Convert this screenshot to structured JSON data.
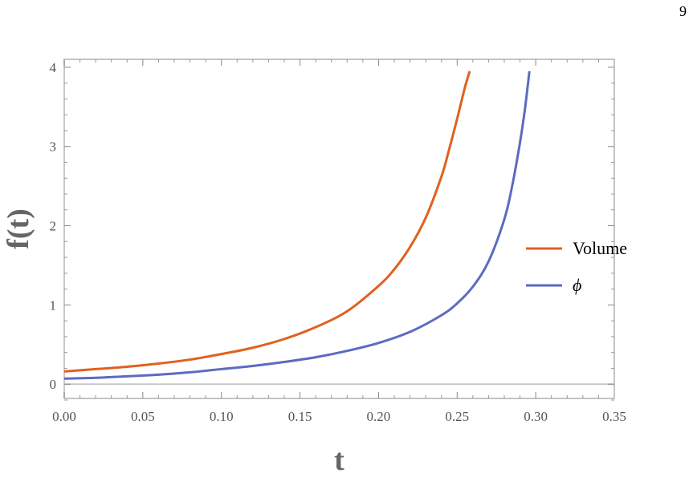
{
  "page_number": "9",
  "chart_data": {
    "type": "line",
    "title": "",
    "xlabel": "t",
    "ylabel": "f(t)",
    "xlim": [
      0.0,
      0.35
    ],
    "ylim": [
      -0.18,
      4.1
    ],
    "x_ticks": [
      "0.00",
      "0.05",
      "0.10",
      "0.15",
      "0.20",
      "0.25",
      "0.30",
      "0.35"
    ],
    "y_ticks": [
      "0",
      "1",
      "2",
      "3",
      "4"
    ],
    "legend_position": "right",
    "grid": false,
    "series": [
      {
        "name": "Volume",
        "color": "#E0611E",
        "x": [
          0.0,
          0.02,
          0.04,
          0.06,
          0.08,
          0.1,
          0.12,
          0.14,
          0.16,
          0.18,
          0.2,
          0.21,
          0.22,
          0.23,
          0.24,
          0.245,
          0.25,
          0.255,
          0.258
        ],
        "y": [
          0.16,
          0.19,
          0.22,
          0.26,
          0.31,
          0.38,
          0.46,
          0.57,
          0.72,
          0.92,
          1.24,
          1.45,
          1.73,
          2.1,
          2.62,
          2.97,
          3.35,
          3.75,
          3.95
        ]
      },
      {
        "name": "ϕ",
        "color": "#5C6BC0",
        "x": [
          0.0,
          0.02,
          0.04,
          0.06,
          0.08,
          0.1,
          0.12,
          0.14,
          0.16,
          0.18,
          0.2,
          0.22,
          0.24,
          0.25,
          0.26,
          0.27,
          0.28,
          0.285,
          0.29,
          0.293,
          0.296
        ],
        "y": [
          0.07,
          0.08,
          0.1,
          0.12,
          0.15,
          0.19,
          0.23,
          0.28,
          0.34,
          0.42,
          0.52,
          0.66,
          0.87,
          1.02,
          1.23,
          1.55,
          2.08,
          2.5,
          3.05,
          3.45,
          3.95
        ]
      }
    ]
  }
}
